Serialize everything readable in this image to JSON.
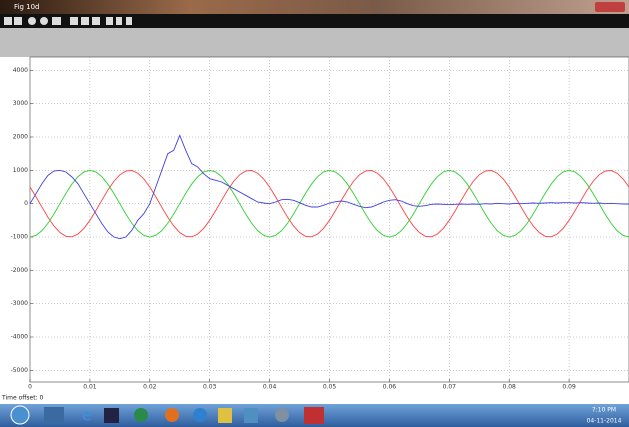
{
  "window": {
    "title": "Fig 10d",
    "time_offset": "Time offset:  0"
  },
  "taskbar": {
    "time": "7:10 PM",
    "date": "04-11-2014"
  },
  "chart_data": {
    "type": "line",
    "x": [
      0,
      0.001,
      0.002,
      0.003,
      0.004,
      0.005,
      0.006,
      0.007,
      0.008,
      0.009,
      0.01,
      0.011,
      0.012,
      0.013,
      0.014,
      0.015,
      0.016,
      0.017,
      0.018,
      0.019,
      0.02,
      0.021,
      0.022,
      0.023,
      0.024,
      0.025,
      0.026,
      0.027,
      0.028,
      0.029,
      0.03,
      0.031,
      0.032,
      0.033,
      0.034,
      0.035,
      0.036,
      0.037,
      0.038,
      0.039,
      0.04,
      0.041,
      0.042,
      0.043,
      0.044,
      0.045,
      0.046,
      0.047,
      0.048,
      0.049,
      0.05,
      0.051,
      0.052,
      0.053,
      0.054,
      0.055,
      0.056,
      0.057,
      0.058,
      0.059,
      0.06,
      0.061,
      0.062,
      0.063,
      0.064,
      0.065,
      0.066,
      0.067,
      0.068,
      0.069,
      0.07,
      0.071,
      0.072,
      0.073,
      0.074,
      0.075,
      0.076,
      0.077,
      0.078,
      0.079,
      0.08,
      0.081,
      0.082,
      0.083,
      0.084,
      0.085,
      0.086,
      0.087,
      0.088,
      0.089,
      0.09,
      0.091,
      0.092,
      0.093,
      0.094,
      0.095,
      0.096,
      0.097,
      0.098,
      0.099,
      0.1
    ],
    "series": [
      {
        "color": "#ff4040",
        "values": [
          500,
          208,
          -105,
          -407,
          -669,
          -866,
          -978,
          -995,
          -914,
          -743,
          -500,
          -208,
          105,
          407,
          669,
          866,
          978,
          995,
          914,
          743,
          500,
          208,
          -105,
          -407,
          -669,
          -866,
          -978,
          -995,
          -914,
          -743,
          -500,
          -208,
          105,
          407,
          669,
          866,
          978,
          995,
          914,
          743,
          500,
          208,
          -105,
          -407,
          -669,
          -866,
          -978,
          -995,
          -914,
          -743,
          -500,
          -208,
          105,
          407,
          669,
          866,
          978,
          995,
          914,
          743,
          500,
          208,
          -105,
          -407,
          -669,
          -866,
          -978,
          -995,
          -914,
          -743,
          -500,
          -208,
          105,
          407,
          669,
          866,
          978,
          995,
          914,
          743,
          500,
          208,
          -105,
          -407,
          -669,
          -866,
          -978,
          -995,
          -914,
          -743,
          -500,
          -208,
          105,
          407,
          669,
          866,
          978,
          995,
          914,
          743,
          500
        ]
      },
      {
        "color": "#30d030",
        "values": [
          -1000,
          -951,
          -809,
          -588,
          -309,
          0,
          309,
          588,
          809,
          951,
          1000,
          951,
          809,
          588,
          309,
          0,
          -309,
          -588,
          -809,
          -951,
          -1000,
          -951,
          -809,
          -588,
          -309,
          0,
          309,
          588,
          809,
          951,
          1000,
          951,
          809,
          588,
          309,
          0,
          -309,
          -588,
          -809,
          -951,
          -1000,
          -951,
          -809,
          -588,
          -309,
          0,
          309,
          588,
          809,
          951,
          1000,
          951,
          809,
          588,
          309,
          0,
          -309,
          -588,
          -809,
          -951,
          -1000,
          -951,
          -809,
          -588,
          -309,
          0,
          309,
          588,
          809,
          951,
          1000,
          951,
          809,
          588,
          309,
          0,
          -309,
          -588,
          -809,
          -951,
          -1000,
          -951,
          -809,
          -588,
          -309,
          0,
          309,
          588,
          809,
          951,
          1000,
          951,
          809,
          588,
          309,
          0,
          -309,
          -588,
          -809,
          -951,
          -1000
        ]
      },
      {
        "color": "#4040e0",
        "values": [
          0,
          300,
          600,
          850,
          980,
          1000,
          950,
          800,
          600,
          300,
          0,
          -300,
          -600,
          -850,
          -1000,
          -1050,
          -1000,
          -800,
          -500,
          -300,
          0,
          500,
          1000,
          1500,
          1600,
          2050,
          1600,
          1200,
          1100,
          900,
          750,
          700,
          650,
          550,
          450,
          350,
          250,
          150,
          50,
          20,
          0,
          50,
          120,
          130,
          100,
          30,
          -50,
          -100,
          -100,
          -50,
          20,
          60,
          80,
          50,
          -20,
          -80,
          -120,
          -100,
          -30,
          50,
          100,
          120,
          80,
          0,
          -60,
          -80,
          -60,
          -20,
          -10,
          -20,
          -30,
          -20,
          -10,
          -20,
          -10,
          -20,
          0,
          -10,
          10,
          0,
          -10,
          10,
          0,
          10,
          20,
          10,
          20,
          30,
          20,
          30,
          30,
          20,
          30,
          20,
          10,
          20,
          0,
          10,
          0,
          -10,
          -10
        ]
      }
    ],
    "xlim": [
      0,
      0.1
    ],
    "xticks": [
      0,
      0.01,
      0.02,
      0.03,
      0.04,
      0.05,
      0.06,
      0.07,
      0.08,
      0.09
    ],
    "ylim": [
      -5350,
      4400
    ],
    "yticks": [
      4000,
      3000,
      2000,
      1000,
      0,
      -1000,
      -2000,
      -3000,
      -4000,
      -5000
    ],
    "grid": true
  }
}
